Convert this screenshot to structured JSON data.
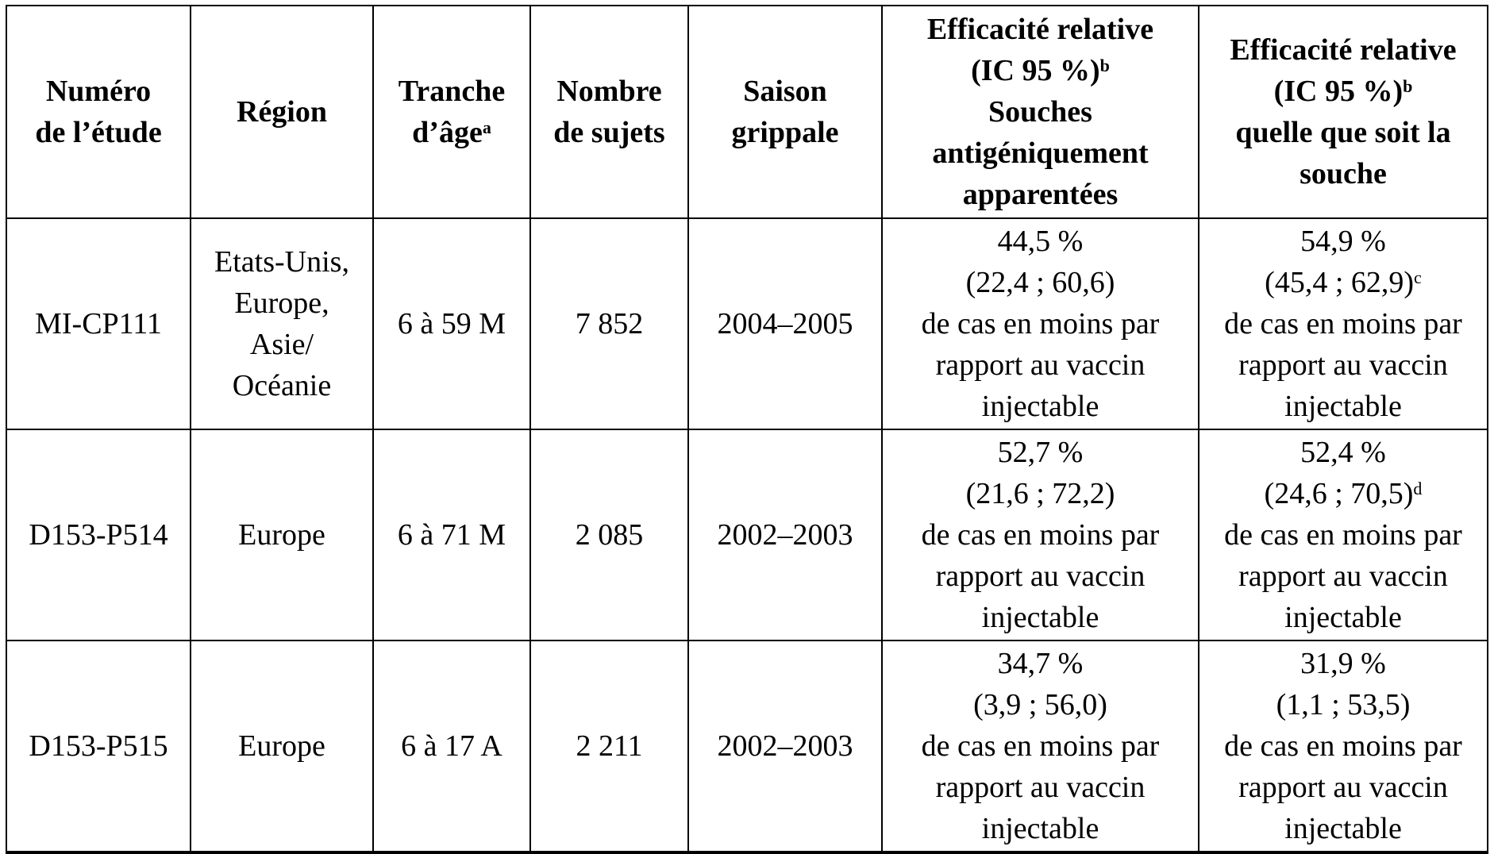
{
  "colors": {
    "border": "#000000",
    "text": "#000000",
    "background": "#ffffff"
  },
  "table": {
    "header": [
      {
        "lines": [
          {
            "text": "Numéro"
          },
          {
            "text": "de l’étude"
          }
        ]
      },
      {
        "lines": [
          {
            "text": "Région"
          }
        ]
      },
      {
        "lines": [
          {
            "text": "Tranche"
          },
          {
            "text": "d’âge",
            "sup": "a"
          }
        ]
      },
      {
        "lines": [
          {
            "text": "Nombre"
          },
          {
            "text": "de sujets"
          }
        ]
      },
      {
        "lines": [
          {
            "text": "Saison"
          },
          {
            "text": "grippale"
          }
        ]
      },
      {
        "lines": [
          {
            "text": "Efficacité relative"
          },
          {
            "text": "(IC 95 %)",
            "sup": "b"
          },
          {
            "text": "Souches"
          },
          {
            "text": "antigéniquement"
          },
          {
            "text": "apparentées"
          }
        ]
      },
      {
        "lines": [
          {
            "text": "Efficacité relative"
          },
          {
            "text": "(IC 95 %)",
            "sup": "b"
          },
          {
            "text": "quelle que soit la"
          },
          {
            "text": "souche"
          }
        ]
      }
    ],
    "rows": [
      {
        "cells": [
          {
            "lines": [
              {
                "text": "MI-CP111"
              }
            ]
          },
          {
            "lines": [
              {
                "text": "Etats-Unis,"
              },
              {
                "text": "Europe,"
              },
              {
                "text": "Asie/"
              },
              {
                "text": "Océanie"
              }
            ]
          },
          {
            "lines": [
              {
                "text": "6 à 59 M"
              }
            ]
          },
          {
            "lines": [
              {
                "text": "7 852"
              }
            ]
          },
          {
            "lines": [
              {
                "text": "2004–2005"
              }
            ]
          },
          {
            "lines": [
              {
                "text": "44,5 %"
              },
              {
                "text": "(22,4 ; 60,6)"
              },
              {
                "text": "de cas en moins par"
              },
              {
                "text": "rapport au vaccin"
              },
              {
                "text": "injectable"
              }
            ]
          },
          {
            "lines": [
              {
                "text": "54,9 %"
              },
              {
                "text": "(45,4 ; 62,9)",
                "sup": "c"
              },
              {
                "text": "de cas en moins par"
              },
              {
                "text": "rapport au vaccin"
              },
              {
                "text": "injectable"
              }
            ]
          }
        ]
      },
      {
        "cells": [
          {
            "lines": [
              {
                "text": "D153-P514"
              }
            ]
          },
          {
            "lines": [
              {
                "text": "Europe"
              }
            ]
          },
          {
            "lines": [
              {
                "text": "6 à 71 M"
              }
            ]
          },
          {
            "lines": [
              {
                "text": "2 085"
              }
            ]
          },
          {
            "lines": [
              {
                "text": "2002–2003"
              }
            ]
          },
          {
            "lines": [
              {
                "text": "52,7 %"
              },
              {
                "text": "(21,6 ; 72,2)"
              },
              {
                "text": "de cas en moins par"
              },
              {
                "text": "rapport au vaccin"
              },
              {
                "text": "injectable"
              }
            ]
          },
          {
            "lines": [
              {
                "text": "52,4 %"
              },
              {
                "text": "(24,6 ; 70,5)",
                "sup": "d"
              },
              {
                "text": "de cas en moins par"
              },
              {
                "text": "rapport au vaccin"
              },
              {
                "text": "injectable"
              }
            ]
          }
        ]
      },
      {
        "cells": [
          {
            "lines": [
              {
                "text": "D153-P515"
              }
            ]
          },
          {
            "lines": [
              {
                "text": "Europe"
              }
            ]
          },
          {
            "lines": [
              {
                "text": "6 à 17 A"
              }
            ]
          },
          {
            "lines": [
              {
                "text": "2 211"
              }
            ]
          },
          {
            "lines": [
              {
                "text": "2002–2003"
              }
            ]
          },
          {
            "lines": [
              {
                "text": "34,7 %"
              },
              {
                "text": "(3,9 ; 56,0)"
              },
              {
                "text": "de cas en moins par"
              },
              {
                "text": "rapport au vaccin"
              },
              {
                "text": "injectable"
              }
            ]
          },
          {
            "lines": [
              {
                "text": "31,9 %"
              },
              {
                "text": "(1,1 ; 53,5)"
              },
              {
                "text": "de cas en moins par"
              },
              {
                "text": "rapport au vaccin"
              },
              {
                "text": "injectable"
              }
            ]
          }
        ]
      }
    ]
  }
}
